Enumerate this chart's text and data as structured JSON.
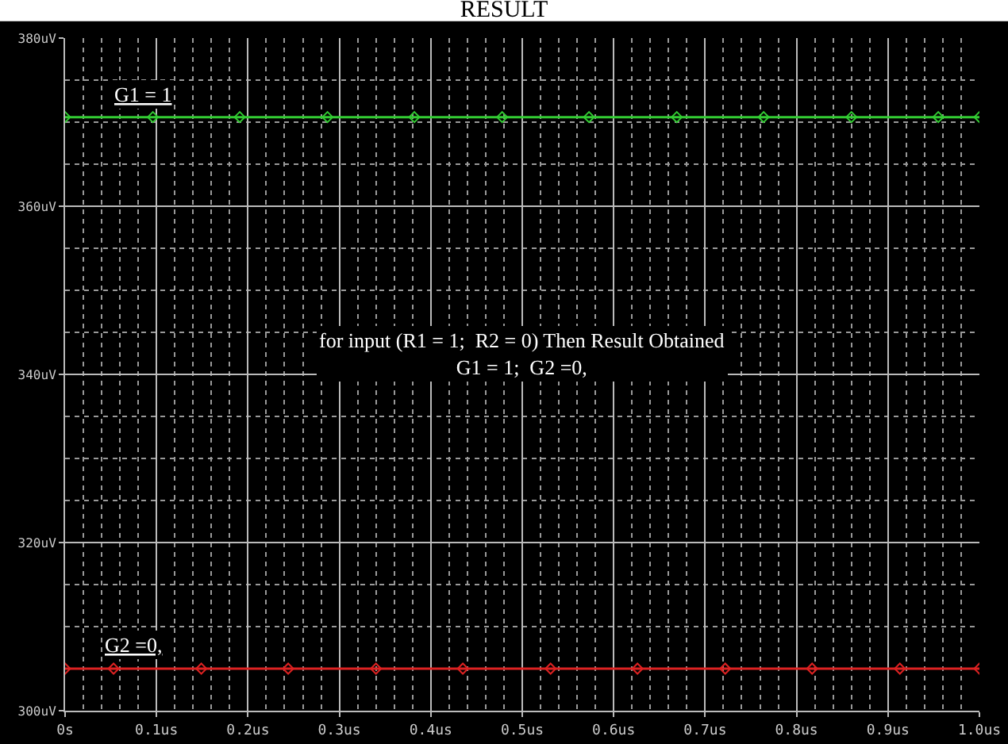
{
  "chart_data": {
    "type": "line",
    "title": "RESULT",
    "xlim": [
      0,
      1.0
    ],
    "xticks": [
      {
        "value": 0,
        "label": "0s"
      },
      {
        "value": 0.1,
        "label": "0.1us"
      },
      {
        "value": 0.2,
        "label": "0.2us"
      },
      {
        "value": 0.3,
        "label": "0.3us"
      },
      {
        "value": 0.4,
        "label": "0.4us"
      },
      {
        "value": 0.5,
        "label": "0.5us"
      },
      {
        "value": 0.6,
        "label": "0.6us"
      },
      {
        "value": 0.7,
        "label": "0.7us"
      },
      {
        "value": 0.8,
        "label": "0.8us"
      },
      {
        "value": 0.9,
        "label": "0.9us"
      },
      {
        "value": 1.0,
        "label": "1.0us"
      }
    ],
    "ylim": [
      300,
      380
    ],
    "yticks": [
      {
        "value": 300,
        "label": "300uV"
      },
      {
        "value": 320,
        "label": "320uV"
      },
      {
        "value": 340,
        "label": "340uV"
      },
      {
        "value": 360,
        "label": "360uV"
      },
      {
        "value": 380,
        "label": "380uV"
      }
    ],
    "series": [
      {
        "color": "#33cc33",
        "x": [
          0,
          0.096,
          0.191,
          0.287,
          0.382,
          0.478,
          0.573,
          0.669,
          0.764,
          0.86,
          0.955,
          1.0
        ],
        "values": [
          370.6,
          370.6,
          370.6,
          370.6,
          370.6,
          370.6,
          370.6,
          370.6,
          370.6,
          370.6,
          370.6,
          370.6
        ]
      },
      {
        "color": "#dd2222",
        "x": [
          0,
          0.053,
          0.149,
          0.244,
          0.34,
          0.435,
          0.531,
          0.626,
          0.722,
          0.817,
          0.913,
          1.0
        ],
        "values": [
          305,
          305,
          305,
          305,
          305,
          305,
          305,
          305,
          305,
          305,
          305,
          305
        ]
      }
    ],
    "marker": "diamond",
    "grid": true,
    "annotations": [
      "G1 = 1",
      "G2 =0,",
      "for input (R1 = 1;  R2 = 0) Then Result Obtained\nG1 = 1;  G2 =0,"
    ]
  }
}
